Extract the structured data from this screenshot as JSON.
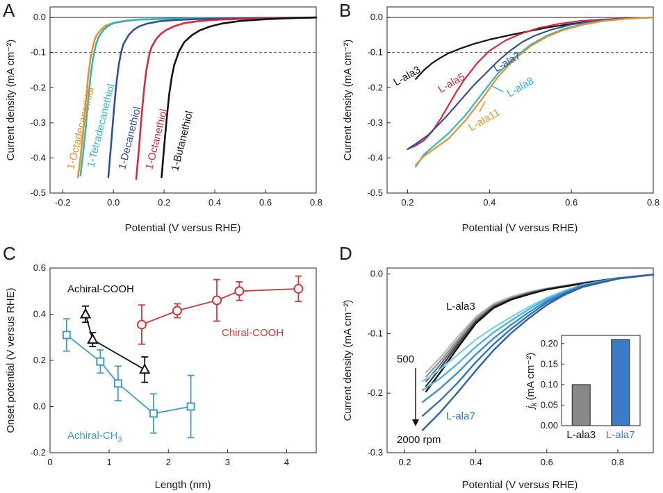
{
  "colors": {
    "orange": "#e8902a",
    "cyan": "#2db8c0",
    "navy": "#2f4f9a",
    "crimson": "#d42a3a",
    "black": "#111111",
    "red": "#d0383a",
    "lightblue": "#3a9fc8",
    "gray": "#888888",
    "barblue": "#3d7bc9"
  },
  "chart_data": [
    {
      "panel": "A",
      "type": "line",
      "xlabel": "Potential (V versus RHE)",
      "ylabel": "Current density (mA cm⁻²)",
      "xlim": [
        -0.25,
        0.8
      ],
      "ylim": [
        -0.5,
        0.03
      ],
      "xticks": [
        "-0.2",
        "0.0",
        "0.2",
        "0.4",
        "0.6",
        "0.8"
      ],
      "yticks": [
        "0.0",
        "-0.1",
        "-0.2",
        "-0.3",
        "-0.4",
        "-0.5"
      ],
      "reference_lines": [
        0.0,
        -0.1
      ],
      "series": [
        {
          "name": "1-Octadecanethiol",
          "color": "#e8902a",
          "x": [
            -0.14,
            -0.13,
            -0.12,
            -0.11,
            -0.1,
            -0.09,
            -0.08,
            -0.07,
            -0.05,
            -0.03,
            0.0,
            0.05,
            0.1,
            0.2,
            0.35,
            0.55,
            0.8
          ],
          "y": [
            -0.455,
            -0.4,
            -0.33,
            -0.25,
            -0.17,
            -0.115,
            -0.08,
            -0.055,
            -0.035,
            -0.023,
            -0.015,
            -0.009,
            -0.006,
            -0.004,
            -0.002,
            -0.001,
            0.0
          ]
        },
        {
          "name": "1-Tetradecanethiol",
          "color": "#2db8c0",
          "x": [
            -0.13,
            -0.12,
            -0.11,
            -0.1,
            -0.09,
            -0.08,
            -0.07,
            -0.06,
            -0.04,
            -0.02,
            0.0,
            0.05,
            0.1,
            0.2,
            0.35,
            0.55,
            0.8
          ],
          "y": [
            -0.45,
            -0.39,
            -0.32,
            -0.24,
            -0.165,
            -0.115,
            -0.08,
            -0.058,
            -0.036,
            -0.024,
            -0.016,
            -0.01,
            -0.006,
            -0.004,
            -0.002,
            -0.001,
            0.0
          ]
        },
        {
          "name": "1-Decanethiol",
          "color": "#2f4f9a",
          "x": [
            -0.02,
            -0.01,
            0.0,
            0.01,
            0.02,
            0.03,
            0.04,
            0.06,
            0.08,
            0.1,
            0.13,
            0.18,
            0.25,
            0.35,
            0.5,
            0.8
          ],
          "y": [
            -0.455,
            -0.37,
            -0.28,
            -0.2,
            -0.14,
            -0.1,
            -0.075,
            -0.05,
            -0.035,
            -0.026,
            -0.018,
            -0.011,
            -0.007,
            -0.004,
            -0.002,
            0.0
          ]
        },
        {
          "name": "1-Octanethiol",
          "color": "#d42a3a",
          "x": [
            0.09,
            0.1,
            0.11,
            0.12,
            0.13,
            0.14,
            0.15,
            0.17,
            0.19,
            0.21,
            0.24,
            0.28,
            0.34,
            0.42,
            0.55,
            0.8
          ],
          "y": [
            -0.46,
            -0.38,
            -0.29,
            -0.21,
            -0.15,
            -0.11,
            -0.085,
            -0.06,
            -0.045,
            -0.035,
            -0.025,
            -0.016,
            -0.01,
            -0.006,
            -0.003,
            0.0
          ]
        },
        {
          "name": "1-Butanethiol",
          "color": "#111111",
          "x": [
            0.19,
            0.2,
            0.21,
            0.22,
            0.23,
            0.24,
            0.26,
            0.28,
            0.31,
            0.34,
            0.38,
            0.43,
            0.5,
            0.6,
            0.7,
            0.8
          ],
          "y": [
            -0.455,
            -0.37,
            -0.29,
            -0.22,
            -0.17,
            -0.135,
            -0.095,
            -0.07,
            -0.05,
            -0.037,
            -0.026,
            -0.017,
            -0.01,
            -0.005,
            -0.002,
            0.0
          ]
        }
      ]
    },
    {
      "panel": "B",
      "type": "line",
      "xlabel": "Potential (V versus RHE)",
      "ylabel": "Current density (mA cm⁻²)",
      "xlim": [
        0.15,
        0.8
      ],
      "ylim": [
        -0.5,
        0.03
      ],
      "xticks": [
        "0.2",
        "0.4",
        "0.6",
        "0.8"
      ],
      "yticks": [
        "0.0",
        "-0.1",
        "-0.2",
        "-0.3",
        "-0.4",
        "-0.5"
      ],
      "reference_lines": [
        0.0,
        -0.1
      ],
      "series": [
        {
          "name": "L-ala3",
          "color": "#111111",
          "x": [
            0.22,
            0.24,
            0.26,
            0.28,
            0.3,
            0.33,
            0.36,
            0.4,
            0.45,
            0.5,
            0.55,
            0.6,
            0.65,
            0.7,
            0.75,
            0.8
          ],
          "y": [
            -0.175,
            -0.15,
            -0.13,
            -0.115,
            -0.102,
            -0.088,
            -0.076,
            -0.063,
            -0.05,
            -0.038,
            -0.027,
            -0.018,
            -0.011,
            -0.006,
            -0.002,
            0.0
          ]
        },
        {
          "name": "L-ala5",
          "color": "#d42a3a",
          "x": [
            0.2,
            0.22,
            0.24,
            0.26,
            0.28,
            0.3,
            0.32,
            0.34,
            0.37,
            0.4,
            0.44,
            0.48,
            0.52,
            0.57,
            0.62,
            0.7,
            0.8
          ],
          "y": [
            -0.375,
            -0.365,
            -0.35,
            -0.325,
            -0.29,
            -0.25,
            -0.21,
            -0.175,
            -0.13,
            -0.095,
            -0.065,
            -0.045,
            -0.03,
            -0.018,
            -0.01,
            -0.004,
            0.0
          ]
        },
        {
          "name": "L-ala7",
          "color": "#2f4f9a",
          "x": [
            0.2,
            0.22,
            0.25,
            0.28,
            0.3,
            0.33,
            0.36,
            0.39,
            0.42,
            0.45,
            0.48,
            0.51,
            0.55,
            0.6,
            0.66,
            0.72,
            0.8
          ],
          "y": [
            -0.375,
            -0.36,
            -0.335,
            -0.3,
            -0.275,
            -0.235,
            -0.195,
            -0.16,
            -0.125,
            -0.095,
            -0.07,
            -0.052,
            -0.035,
            -0.02,
            -0.01,
            -0.004,
            0.0
          ]
        },
        {
          "name": "L-ala8",
          "color": "#2db8c0",
          "x": [
            0.22,
            0.24,
            0.27,
            0.3,
            0.34,
            0.38,
            0.42,
            0.46,
            0.5,
            0.54,
            0.58,
            0.63,
            0.68,
            0.73,
            0.8
          ],
          "y": [
            -0.425,
            -0.39,
            -0.36,
            -0.33,
            -0.28,
            -0.22,
            -0.16,
            -0.115,
            -0.078,
            -0.052,
            -0.033,
            -0.018,
            -0.009,
            -0.004,
            0.0
          ]
        },
        {
          "name": "L-ala11",
          "color": "#e8902a",
          "x": [
            0.22,
            0.24,
            0.27,
            0.3,
            0.34,
            0.38,
            0.42,
            0.46,
            0.5,
            0.54,
            0.58,
            0.63,
            0.68,
            0.73,
            0.8
          ],
          "y": [
            -0.42,
            -0.395,
            -0.37,
            -0.345,
            -0.295,
            -0.235,
            -0.17,
            -0.12,
            -0.082,
            -0.055,
            -0.036,
            -0.02,
            -0.01,
            -0.004,
            0.0
          ]
        }
      ]
    },
    {
      "panel": "C",
      "type": "scatter",
      "xlabel": "Length (nm)",
      "ylabel": "Onset potential (V versus RHE)",
      "xlim": [
        0,
        4.5
      ],
      "ylim": [
        -0.2,
        0.6
      ],
      "xticks": [
        "0",
        "1",
        "2",
        "3",
        "4"
      ],
      "yticks": [
        "-0.2",
        "0.0",
        "0.2",
        "0.4",
        "0.6"
      ],
      "series": [
        {
          "name": "Achiral-COOH",
          "color": "#111111",
          "marker": "triangle",
          "x": [
            0.6,
            0.72,
            1.6
          ],
          "y": [
            0.4,
            0.29,
            0.16
          ],
          "err": [
            0.035,
            0.03,
            0.055
          ]
        },
        {
          "name": "Chiral-COOH",
          "color": "#d0383a",
          "marker": "circle",
          "x": [
            1.55,
            2.15,
            2.82,
            3.2,
            4.2
          ],
          "y": [
            0.355,
            0.415,
            0.46,
            0.5,
            0.51
          ],
          "err": [
            0.085,
            0.03,
            0.09,
            0.04,
            0.055
          ]
        },
        {
          "name": "Achiral-CH",
          "name_sub": "3",
          "color": "#3a9fc8",
          "marker": "square",
          "x": [
            0.28,
            0.85,
            1.15,
            1.75,
            2.38
          ],
          "y": [
            0.31,
            0.195,
            0.1,
            -0.03,
            0.0
          ],
          "err": [
            0.07,
            0.05,
            0.075,
            0.085,
            0.135
          ]
        }
      ]
    },
    {
      "panel": "D",
      "type": "line",
      "xlabel": "Potential (V versus RHE)",
      "ylabel": "Current density (mA cm⁻²)",
      "xlim": [
        0.15,
        0.9
      ],
      "ylim": [
        -0.3,
        0.01
      ],
      "xticks": [
        "0.2",
        "0.4",
        "0.6",
        "0.8"
      ],
      "yticks": [
        "0.0",
        "-0.1",
        "-0.2",
        "-0.3"
      ],
      "labels": {
        "ala3": "L-ala3",
        "ala7": "L-ala7",
        "rpm_low": "500",
        "rpm_high": "2000 rpm"
      },
      "series": [
        {
          "name": "L-ala3 500",
          "color": "#bbbbbb",
          "x": [
            0.26,
            0.3,
            0.35,
            0.4,
            0.45,
            0.5,
            0.55,
            0.6,
            0.7,
            0.8,
            0.9
          ],
          "y": [
            -0.165,
            -0.14,
            -0.105,
            -0.072,
            -0.05,
            -0.038,
            -0.03,
            -0.024,
            -0.015,
            -0.007,
            -0.001
          ]
        },
        {
          "name": "L-ala3 a",
          "color": "#999999",
          "x": [
            0.26,
            0.3,
            0.35,
            0.4,
            0.45,
            0.5,
            0.55,
            0.6,
            0.7,
            0.8,
            0.9
          ],
          "y": [
            -0.172,
            -0.146,
            -0.11,
            -0.075,
            -0.052,
            -0.04,
            -0.031,
            -0.025,
            -0.015,
            -0.007,
            -0.001
          ]
        },
        {
          "name": "L-ala3 b",
          "color": "#777777",
          "x": [
            0.26,
            0.3,
            0.35,
            0.4,
            0.45,
            0.5,
            0.55,
            0.6,
            0.7,
            0.8,
            0.9
          ],
          "y": [
            -0.18,
            -0.152,
            -0.114,
            -0.078,
            -0.054,
            -0.041,
            -0.032,
            -0.025,
            -0.015,
            -0.007,
            -0.001
          ]
        },
        {
          "name": "L-ala3 c",
          "color": "#444444",
          "x": [
            0.26,
            0.3,
            0.35,
            0.4,
            0.45,
            0.5,
            0.55,
            0.6,
            0.7,
            0.8,
            0.9
          ],
          "y": [
            -0.188,
            -0.158,
            -0.118,
            -0.08,
            -0.055,
            -0.042,
            -0.033,
            -0.026,
            -0.016,
            -0.007,
            -0.001
          ]
        },
        {
          "name": "L-ala3 2000",
          "color": "#111111",
          "x": [
            0.26,
            0.3,
            0.35,
            0.4,
            0.45,
            0.5,
            0.55,
            0.6,
            0.7,
            0.8,
            0.9
          ],
          "y": [
            -0.197,
            -0.165,
            -0.123,
            -0.083,
            -0.057,
            -0.043,
            -0.034,
            -0.026,
            -0.016,
            -0.007,
            -0.001
          ]
        },
        {
          "name": "L-ala7 500",
          "color": "#7fd0ea",
          "x": [
            0.25,
            0.3,
            0.35,
            0.4,
            0.45,
            0.5,
            0.55,
            0.6,
            0.65,
            0.7,
            0.8,
            0.9
          ],
          "y": [
            -0.18,
            -0.16,
            -0.135,
            -0.11,
            -0.09,
            -0.072,
            -0.055,
            -0.04,
            -0.028,
            -0.018,
            -0.007,
            -0.001
          ]
        },
        {
          "name": "L-ala7 a",
          "color": "#4fb3de",
          "x": [
            0.25,
            0.3,
            0.35,
            0.4,
            0.45,
            0.5,
            0.55,
            0.6,
            0.65,
            0.7,
            0.8,
            0.9
          ],
          "y": [
            -0.195,
            -0.175,
            -0.15,
            -0.122,
            -0.098,
            -0.078,
            -0.059,
            -0.042,
            -0.029,
            -0.019,
            -0.007,
            -0.001
          ]
        },
        {
          "name": "L-ala7 b",
          "color": "#3a8fc8",
          "x": [
            0.25,
            0.3,
            0.35,
            0.4,
            0.45,
            0.5,
            0.55,
            0.6,
            0.65,
            0.7,
            0.8,
            0.9
          ],
          "y": [
            -0.215,
            -0.192,
            -0.165,
            -0.135,
            -0.108,
            -0.085,
            -0.064,
            -0.045,
            -0.031,
            -0.02,
            -0.007,
            -0.001
          ]
        },
        {
          "name": "L-ala7 c",
          "color": "#3172b8",
          "x": [
            0.25,
            0.3,
            0.35,
            0.4,
            0.45,
            0.5,
            0.55,
            0.6,
            0.65,
            0.7,
            0.8,
            0.9
          ],
          "y": [
            -0.238,
            -0.212,
            -0.182,
            -0.148,
            -0.118,
            -0.092,
            -0.069,
            -0.048,
            -0.033,
            -0.021,
            -0.008,
            -0.001
          ]
        },
        {
          "name": "L-ala7 2000",
          "color": "#2c5ea8",
          "x": [
            0.25,
            0.3,
            0.35,
            0.4,
            0.45,
            0.5,
            0.55,
            0.6,
            0.65,
            0.7,
            0.8,
            0.9
          ],
          "y": [
            -0.262,
            -0.232,
            -0.198,
            -0.162,
            -0.128,
            -0.099,
            -0.074,
            -0.052,
            -0.035,
            -0.022,
            -0.008,
            -0.001
          ]
        }
      ]
    },
    {
      "panel": "D-inset",
      "type": "bar",
      "ylabel": "j",
      "ylabel_sub": "k",
      "ylabel_unit": "(mA cm⁻²)",
      "ylim": [
        0,
        0.22
      ],
      "yticks": [
        "0.00",
        "0.05",
        "0.10",
        "0.15",
        "0.20"
      ],
      "categories": [
        "L-ala3",
        "L-ala7"
      ],
      "values": [
        0.1,
        0.21
      ],
      "colors": [
        "#888888",
        "#3d7bc9"
      ]
    }
  ],
  "panel_letters": [
    "A",
    "B",
    "C",
    "D"
  ]
}
